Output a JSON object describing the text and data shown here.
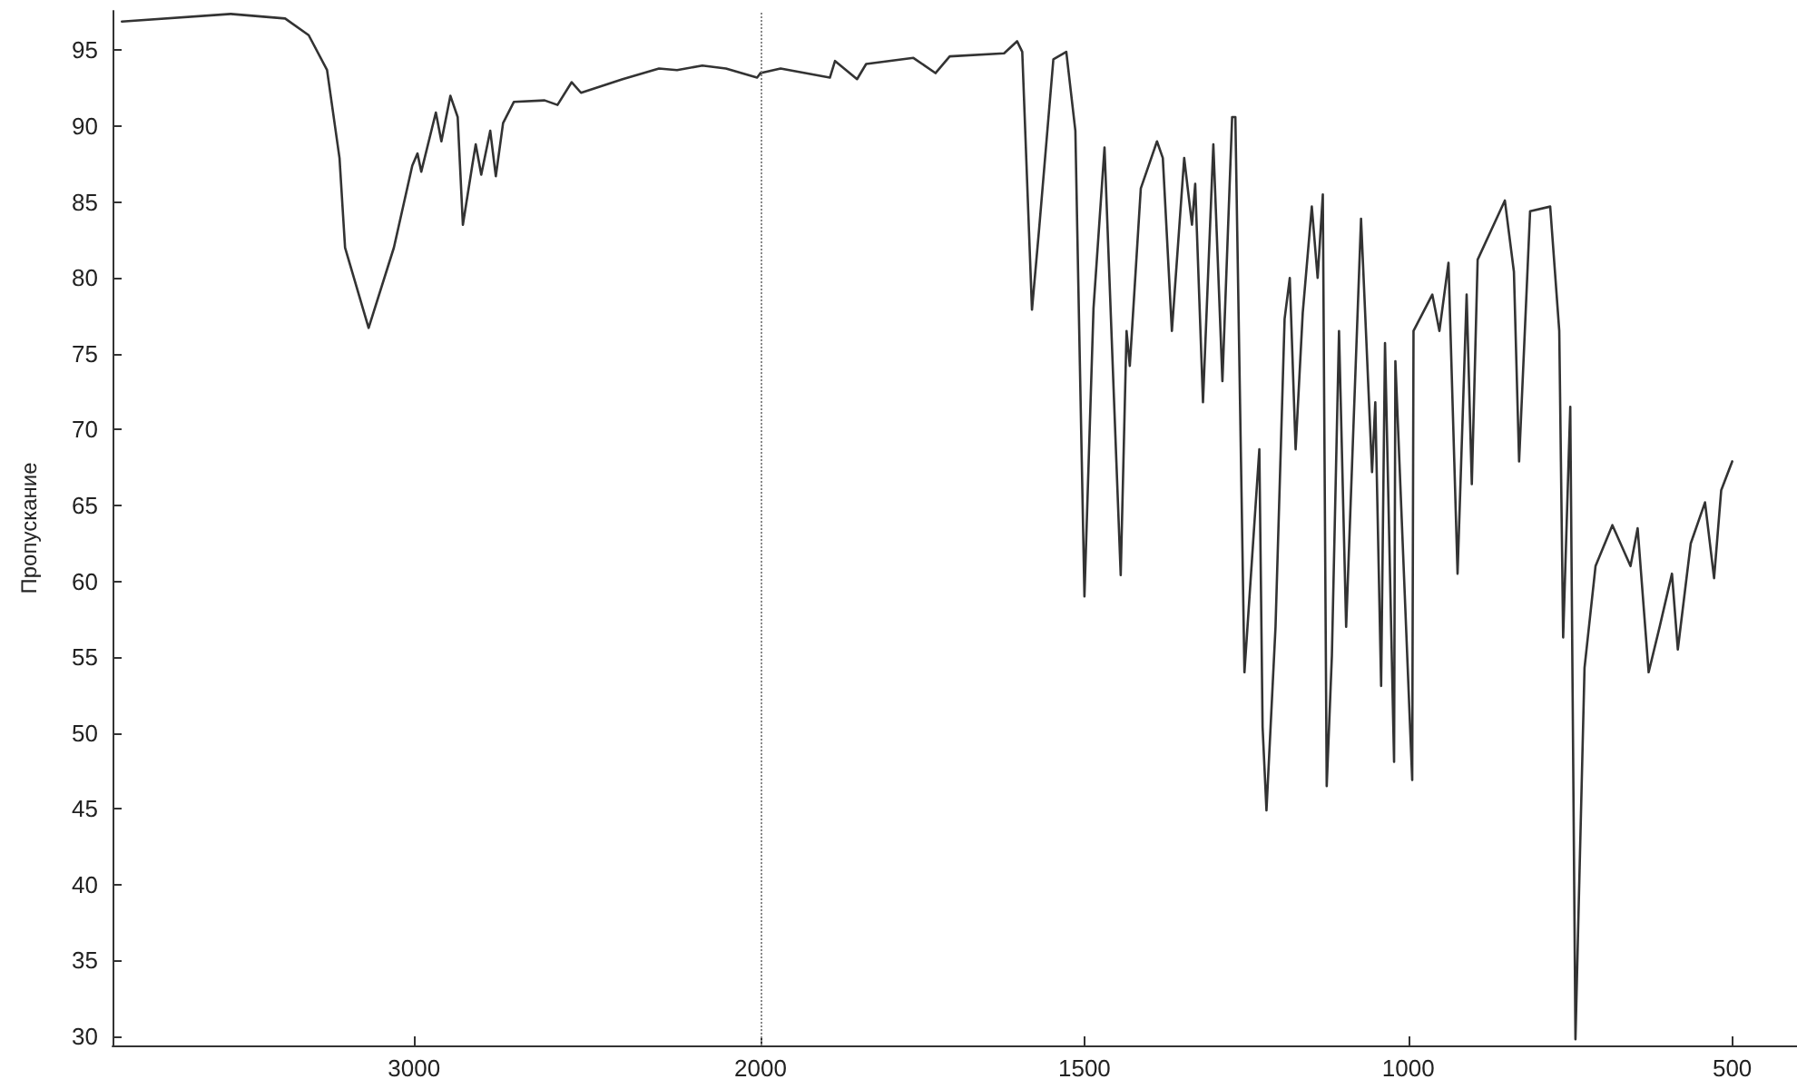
{
  "chart_data": [
    {
      "type": "line",
      "ylabel": "Пропускание",
      "xlim": [
        3870,
        2000
      ],
      "xticks": [
        3000,
        2000
      ],
      "ylim": [
        29.4,
        97.6
      ],
      "yticks": [
        30,
        35,
        40,
        45,
        50,
        55,
        60,
        65,
        70,
        75,
        80,
        85,
        90,
        95
      ],
      "tick_labels": "xy",
      "marker": "none",
      "line_style": "solid",
      "series": [
        {
          "color": "#333333",
          "x": [
            3843,
            3529,
            3372,
            3304,
            3251,
            3215,
            3199,
            3131,
            3058,
            3005,
            2990,
            2979,
            2937,
            2921,
            2895,
            2874,
            2859,
            2832,
            2822,
            2806,
            2780,
            2764,
            2743,
            2712,
            2623,
            2586,
            2545,
            2518,
            2398,
            2293,
            2241,
            2168,
            2100,
            2010,
            2000
          ],
          "values": [
            96.9,
            97.4,
            97.1,
            96.0,
            93.7,
            87.9,
            82.0,
            76.7,
            82.0,
            87.4,
            88.2,
            87.0,
            90.9,
            89.0,
            92.0,
            90.6,
            83.5,
            87.4,
            88.8,
            86.8,
            89.7,
            86.7,
            90.2,
            91.6,
            91.7,
            91.4,
            92.9,
            92.2,
            93.1,
            93.8,
            93.7,
            94.0,
            93.8,
            93.2,
            93.5
          ]
        }
      ]
    },
    {
      "type": "line",
      "xlim": [
        2000,
        400
      ],
      "xticks": [
        {
          "value": 2000,
          "label": null
        },
        1500,
        1000,
        500
      ],
      "ylim": [
        29.4,
        97.6
      ],
      "tick_labels": "x",
      "marker": "none",
      "line_style": "solid",
      "ref_lines": [
        {
          "axis": "x",
          "value": 2000,
          "color": "#888888",
          "line_style": "dotted"
        }
      ],
      "series": [
        {
          "color": "#333333",
          "x": [
            2000,
            1969,
            1893,
            1885,
            1851,
            1837,
            1764,
            1730,
            1708,
            1624,
            1604,
            1596,
            1581,
            1570,
            1548,
            1528,
            1514,
            1507,
            1500,
            1486,
            1469,
            1455,
            1444,
            1435,
            1430,
            1413,
            1388,
            1379,
            1365,
            1346,
            1334,
            1329,
            1317,
            1301,
            1287,
            1272,
            1267,
            1253,
            1230,
            1225,
            1219,
            1205,
            1191,
            1183,
            1174,
            1163,
            1149,
            1140,
            1132,
            1126,
            1118,
            1107,
            1096,
            1073,
            1056,
            1051,
            1042,
            1036,
            1022,
            1020,
            994,
            992,
            963,
            952,
            938,
            924,
            910,
            902,
            893,
            851,
            837,
            829,
            812,
            781,
            767,
            761,
            750,
            742,
            728,
            711,
            685,
            657,
            646,
            629,
            612,
            593,
            584,
            564,
            542,
            528,
            517,
            500
          ],
          "values": [
            93.5,
            93.8,
            93.2,
            94.3,
            93.1,
            94.1,
            94.5,
            93.5,
            94.6,
            94.8,
            95.6,
            94.9,
            77.9,
            83.2,
            94.4,
            94.9,
            89.7,
            74.2,
            59.0,
            78.0,
            88.6,
            72.7,
            60.4,
            76.5,
            74.2,
            85.9,
            89.0,
            87.9,
            76.5,
            87.9,
            83.5,
            86.2,
            71.8,
            88.8,
            73.2,
            90.6,
            90.6,
            54.0,
            68.7,
            50.4,
            44.9,
            57.0,
            77.3,
            80.0,
            68.7,
            77.7,
            84.7,
            80.0,
            85.5,
            46.5,
            55.1,
            76.5,
            57.0,
            83.9,
            67.2,
            71.8,
            53.1,
            75.7,
            48.1,
            74.5,
            46.9,
            76.5,
            78.9,
            76.5,
            81.0,
            60.5,
            78.9,
            66.4,
            81.2,
            85.1,
            80.4,
            67.9,
            84.4,
            84.7,
            76.5,
            56.3,
            71.5,
            29.8,
            54.3,
            61.0,
            63.7,
            61.0,
            63.5,
            54.0,
            57.0,
            60.5,
            55.5,
            62.5,
            65.2,
            60.2,
            66.0,
            67.9
          ]
        }
      ]
    }
  ]
}
